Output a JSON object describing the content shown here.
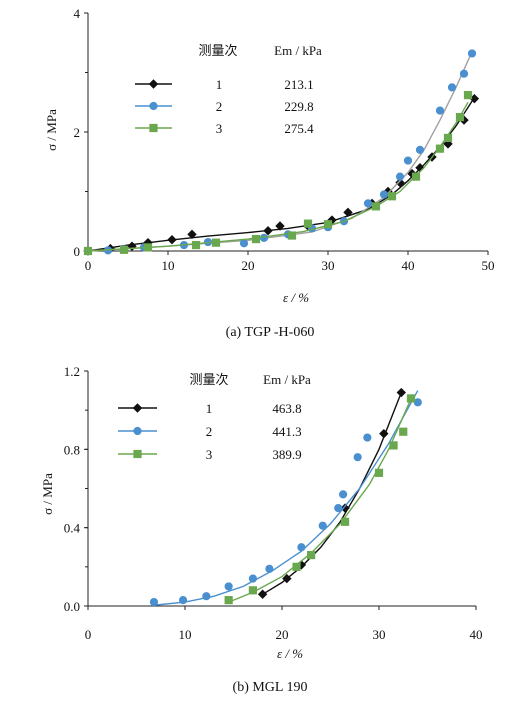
{
  "chart_data": [
    {
      "type": "scatter",
      "caption": "(a)    TGP -H-060",
      "xlabel": "ε  /  %",
      "ylabel": "σ  / MPa",
      "xlim": [
        0,
        50
      ],
      "ylim": [
        0,
        4
      ],
      "xticks": [
        "0",
        "10",
        "20",
        "30",
        "40",
        "50"
      ],
      "yticks": [
        "0",
        "2",
        "4"
      ],
      "legend_header": [
        "测量次",
        "Em / kPa"
      ],
      "series": [
        {
          "name": "1",
          "em": "213.1",
          "color": "#111111",
          "marker": "diamond",
          "x": [
            0,
            2.8,
            5.5,
            7.5,
            10.5,
            13,
            22.5,
            24,
            27.5,
            30.5,
            32.5,
            35.5,
            37.5,
            39,
            40.5,
            41.5,
            43,
            45,
            47,
            48.3
          ],
          "y": [
            0,
            0.04,
            0.08,
            0.14,
            0.19,
            0.28,
            0.34,
            0.42,
            0.42,
            0.52,
            0.65,
            0.8,
            1.0,
            1.15,
            1.3,
            1.4,
            1.58,
            1.8,
            2.2,
            2.56
          ],
          "fit_x": [
            0,
            5,
            10,
            15,
            20,
            25,
            30,
            35,
            38,
            40,
            42,
            44,
            46,
            48.3
          ],
          "fit_y": [
            0,
            0.1,
            0.18,
            0.25,
            0.31,
            0.38,
            0.48,
            0.7,
            0.95,
            1.18,
            1.45,
            1.75,
            2.1,
            2.58
          ]
        },
        {
          "name": "2",
          "em": "229.8",
          "color": "#4a8fd0",
          "marker": "circle",
          "x": [
            0,
            2.5,
            4.5,
            7,
            12,
            15,
            19.5,
            22,
            25,
            28,
            30,
            32,
            35,
            37,
            39,
            40,
            41.5,
            44,
            45.5,
            47,
            48
          ],
          "y": [
            0,
            0.01,
            0.03,
            0.06,
            0.1,
            0.15,
            0.13,
            0.22,
            0.28,
            0.38,
            0.4,
            0.5,
            0.8,
            0.95,
            1.25,
            1.52,
            1.7,
            2.36,
            2.75,
            2.98,
            3.32
          ],
          "fit_x": [
            0,
            10,
            20,
            28,
            33,
            37,
            40,
            42,
            44,
            46,
            48
          ],
          "fit_y": [
            0,
            0.08,
            0.18,
            0.32,
            0.55,
            0.9,
            1.32,
            1.7,
            2.2,
            2.75,
            3.35
          ]
        },
        {
          "name": "3",
          "em": "275.4",
          "color": "#6aa84f",
          "marker": "square",
          "x": [
            0,
            4.5,
            7.5,
            13.5,
            16,
            21,
            25.5,
            27.5,
            30,
            36,
            38,
            41,
            44,
            45,
            46.5,
            47.5
          ],
          "y": [
            0,
            0.02,
            0.06,
            0.1,
            0.14,
            0.2,
            0.26,
            0.46,
            0.45,
            0.75,
            0.92,
            1.25,
            1.72,
            1.9,
            2.25,
            2.62
          ],
          "fit_x": [
            0,
            10,
            20,
            27,
            32,
            36,
            39,
            42,
            44,
            46,
            47.5
          ],
          "fit_y": [
            0,
            0.08,
            0.2,
            0.33,
            0.5,
            0.75,
            1.0,
            1.4,
            1.75,
            2.15,
            2.5
          ]
        }
      ]
    },
    {
      "type": "scatter",
      "caption": "(b)    MGL 190",
      "xlabel": "ε / %",
      "ylabel": "σ  / MPa",
      "xlim": [
        0,
        40
      ],
      "ylim": [
        0,
        1.2
      ],
      "xticks": [
        "0",
        "10",
        "20",
        "30",
        "40"
      ],
      "yticks": [
        "0.0",
        "0.4",
        "0.8",
        "1.2"
      ],
      "legend_header": [
        "测量次",
        "Em / kPa"
      ],
      "series": [
        {
          "name": "1",
          "em": "463.8",
          "color": "#111111",
          "marker": "diamond",
          "x": [
            18,
            20.5,
            22,
            26.5,
            30.5,
            32.3
          ],
          "y": [
            0.06,
            0.14,
            0.21,
            0.5,
            0.88,
            1.09
          ],
          "fit_x": [
            18,
            20,
            22,
            24,
            26,
            28,
            30,
            32.3
          ],
          "fit_y": [
            0.06,
            0.12,
            0.2,
            0.3,
            0.43,
            0.6,
            0.8,
            1.09
          ]
        },
        {
          "name": "2",
          "em": "441.3",
          "color": "#4a8fd0",
          "marker": "circle",
          "x": [
            6.8,
            9.8,
            12.2,
            14.5,
            17,
            18.7,
            22,
            24.2,
            25.8,
            26.3,
            27.8,
            28.8,
            34
          ],
          "y": [
            0.02,
            0.03,
            0.05,
            0.1,
            0.14,
            0.19,
            0.3,
            0.41,
            0.5,
            0.57,
            0.76,
            0.86,
            1.04
          ],
          "fit_x": [
            7,
            10,
            13,
            16,
            19,
            22,
            25,
            28,
            31,
            34
          ],
          "fit_y": [
            0.005,
            0.02,
            0.05,
            0.1,
            0.18,
            0.28,
            0.42,
            0.6,
            0.83,
            1.1
          ]
        },
        {
          "name": "3",
          "em": "389.9",
          "color": "#6aa84f",
          "marker": "square",
          "x": [
            14.5,
            17,
            21.5,
            23,
            26.5,
            30,
            31.5,
            32.5,
            33.3
          ],
          "y": [
            0.03,
            0.08,
            0.2,
            0.26,
            0.43,
            0.68,
            0.82,
            0.89,
            1.06
          ],
          "fit_x": [
            14.5,
            17,
            20,
            23,
            26,
            29,
            31,
            33.5
          ],
          "fit_y": [
            0.02,
            0.07,
            0.15,
            0.27,
            0.42,
            0.62,
            0.8,
            1.08
          ]
        }
      ]
    }
  ]
}
